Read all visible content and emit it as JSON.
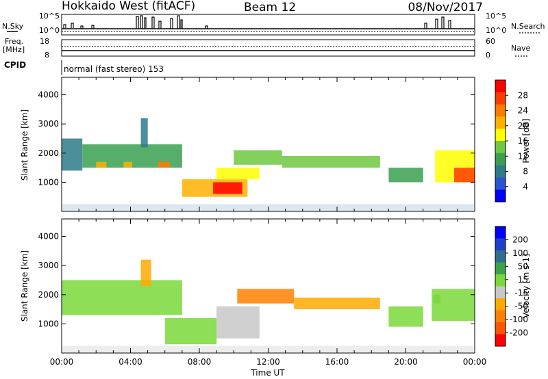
{
  "header": {
    "radar": "Hokkaido West (fitACF)",
    "beam": "Beam 12",
    "date": "08/Nov/2017"
  },
  "panels": {
    "nsky_label": "N.Sky",
    "nsearch_label": "N.Search",
    "nsky_ticks": [
      "10^5",
      "10^0"
    ],
    "nsearch_ticks": [
      "10^5",
      "10^0"
    ],
    "freq_label_line1": "Freq.",
    "freq_label_line2": "[MHz]",
    "freq_ticks": [
      "18",
      "8"
    ],
    "nave_label": "Nave",
    "nave_ticks": [
      "60",
      "0"
    ],
    "cpid_label": "CPID",
    "cpid_text": "normal (fast stereo) 153"
  },
  "colors": {
    "velocity": [
      "#0000ff",
      "#1e3ecc",
      "#2e6e8e",
      "#3aa34a",
      "#7ad83a",
      "#c8c8c8",
      "#ffaa00",
      "#ff8000",
      "#ff5500",
      "#ff0000"
    ],
    "power": [
      "#0000ff",
      "#2a55d0",
      "#2e7a8a",
      "#3aa050",
      "#6ec840",
      "#ffff00",
      "#ffb000",
      "#ff7a00",
      "#ff3c00",
      "#ff0000"
    ]
  },
  "chart_data": [
    {
      "type": "heatmap",
      "name": "power",
      "xlabel": "",
      "ylabel": "Slant Range [km]",
      "xlim": [
        "00:00",
        "24:00"
      ],
      "ylim": [
        0,
        4600
      ],
      "yticks": [
        "1000",
        "2000",
        "3000",
        "4000"
      ],
      "colorbar": {
        "label": "Power [dB]",
        "ticks": [
          "4",
          "8",
          "12",
          "16",
          "20",
          "24",
          "28"
        ],
        "range": [
          0,
          32
        ]
      },
      "regions": [
        {
          "t0": 0.0,
          "t1": 1.2,
          "r0": 1400,
          "r1": 2500,
          "value": 9
        },
        {
          "t0": 1.2,
          "t1": 7.0,
          "r0": 1500,
          "r1": 2300,
          "value": 10
        },
        {
          "t0": 2.0,
          "t1": 2.6,
          "r0": 1500,
          "r1": 1700,
          "value": 21
        },
        {
          "t0": 3.6,
          "t1": 4.1,
          "r0": 1500,
          "r1": 1700,
          "value": 22
        },
        {
          "t0": 5.6,
          "t1": 6.3,
          "r0": 1500,
          "r1": 1700,
          "value": 23
        },
        {
          "t0": 4.6,
          "t1": 5.0,
          "r0": 2200,
          "r1": 3200,
          "value": 8
        },
        {
          "t0": 7.0,
          "t1": 10.8,
          "r0": 500,
          "r1": 1100,
          "value": 22
        },
        {
          "t0": 8.8,
          "t1": 10.5,
          "r0": 600,
          "r1": 1000,
          "value": 29
        },
        {
          "t0": 9.0,
          "t1": 11.5,
          "r0": 1100,
          "r1": 1500,
          "value": 19
        },
        {
          "t0": 10.0,
          "t1": 12.8,
          "r0": 1600,
          "r1": 2100,
          "value": 14
        },
        {
          "t0": 12.8,
          "t1": 18.5,
          "r0": 1500,
          "r1": 1900,
          "value": 13
        },
        {
          "t0": 19.0,
          "t1": 21.0,
          "r0": 1000,
          "r1": 1500,
          "value": 11
        },
        {
          "t0": 21.7,
          "t1": 24.0,
          "r0": 1000,
          "r1": 2100,
          "value": 17
        },
        {
          "t0": 22.8,
          "t1": 24.0,
          "r0": 1000,
          "r1": 1500,
          "value": 27
        }
      ]
    },
    {
      "type": "heatmap",
      "name": "velocity",
      "xlabel": "Time UT",
      "ylabel": "Slant Range [km]",
      "xlim": [
        "00:00",
        "24:00"
      ],
      "xticks": [
        "00:00",
        "04:00",
        "08:00",
        "12:00",
        "16:00",
        "20:00",
        "00:00"
      ],
      "ylim": [
        0,
        4600
      ],
      "yticks": [
        "1000",
        "2000",
        "3000",
        "4000"
      ],
      "colorbar": {
        "label": "Velocity [m s-1]",
        "ticks": [
          "200",
          "100",
          "50",
          "15",
          "-15",
          "-50",
          "-100",
          "-200"
        ],
        "range": [
          -250,
          250
        ]
      },
      "regions": [
        {
          "t0": 0.0,
          "t1": 7.0,
          "r0": 1300,
          "r1": 2500,
          "value": 0
        },
        {
          "t0": 4.6,
          "t1": 5.2,
          "r0": 2300,
          "r1": 3200,
          "value": -80
        },
        {
          "t0": 6.0,
          "t1": 8.6,
          "r0": 300,
          "r1": 1200,
          "value": 35
        },
        {
          "t0": 8.6,
          "t1": 9.0,
          "r0": 300,
          "r1": 1200,
          "value": 0
        },
        {
          "t0": 9.0,
          "t1": 11.5,
          "r0": 500,
          "r1": 1600,
          "value": -45
        },
        {
          "t0": 10.2,
          "t1": 13.5,
          "r0": 1700,
          "r1": 2200,
          "value": -120
        },
        {
          "t0": 13.5,
          "t1": 18.5,
          "r0": 1500,
          "r1": 1900,
          "value": -90
        },
        {
          "t0": 19.0,
          "t1": 21.0,
          "r0": 900,
          "r1": 1600,
          "value": 0
        },
        {
          "t0": 21.5,
          "t1": 24.0,
          "r0": 1100,
          "r1": 2200,
          "value": 0
        },
        {
          "t0": 21.6,
          "t1": 22.0,
          "r0": 1700,
          "r1": 2000,
          "value": 30
        }
      ]
    }
  ]
}
